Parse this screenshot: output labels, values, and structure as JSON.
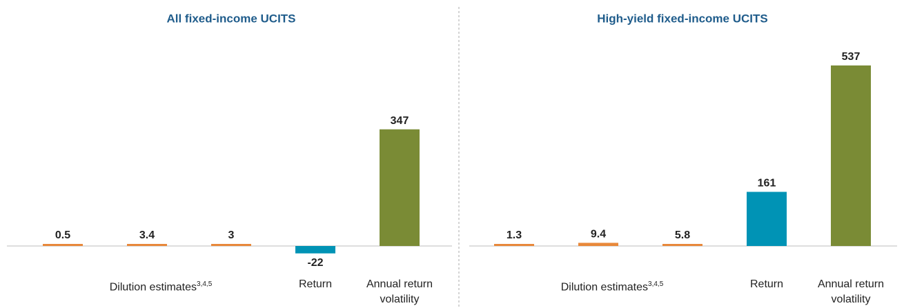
{
  "chart_data": [
    {
      "type": "bar",
      "title": "All fixed-income UCITS",
      "categories": [
        null,
        null,
        null,
        "Return",
        "Annual return volatility"
      ],
      "group_label": "Dilution estimates",
      "group_label_superscript": "3,4,5",
      "values": [
        0.5,
        3.4,
        3,
        -22,
        347
      ],
      "colors": [
        "#e8883a",
        "#e8883a",
        "#e8883a",
        "#0093b5",
        "#7a8b35"
      ]
    },
    {
      "type": "bar",
      "title": "High-yield fixed-income UCITS",
      "categories": [
        null,
        null,
        null,
        "Return",
        "Annual return volatility"
      ],
      "group_label": "Dilution estimates",
      "group_label_superscript": "3,4,5",
      "values": [
        1.3,
        9.4,
        5.8,
        161,
        537
      ],
      "colors": [
        "#e8883a",
        "#e8883a",
        "#e8883a",
        "#0093b5",
        "#7a8b35"
      ]
    }
  ]
}
